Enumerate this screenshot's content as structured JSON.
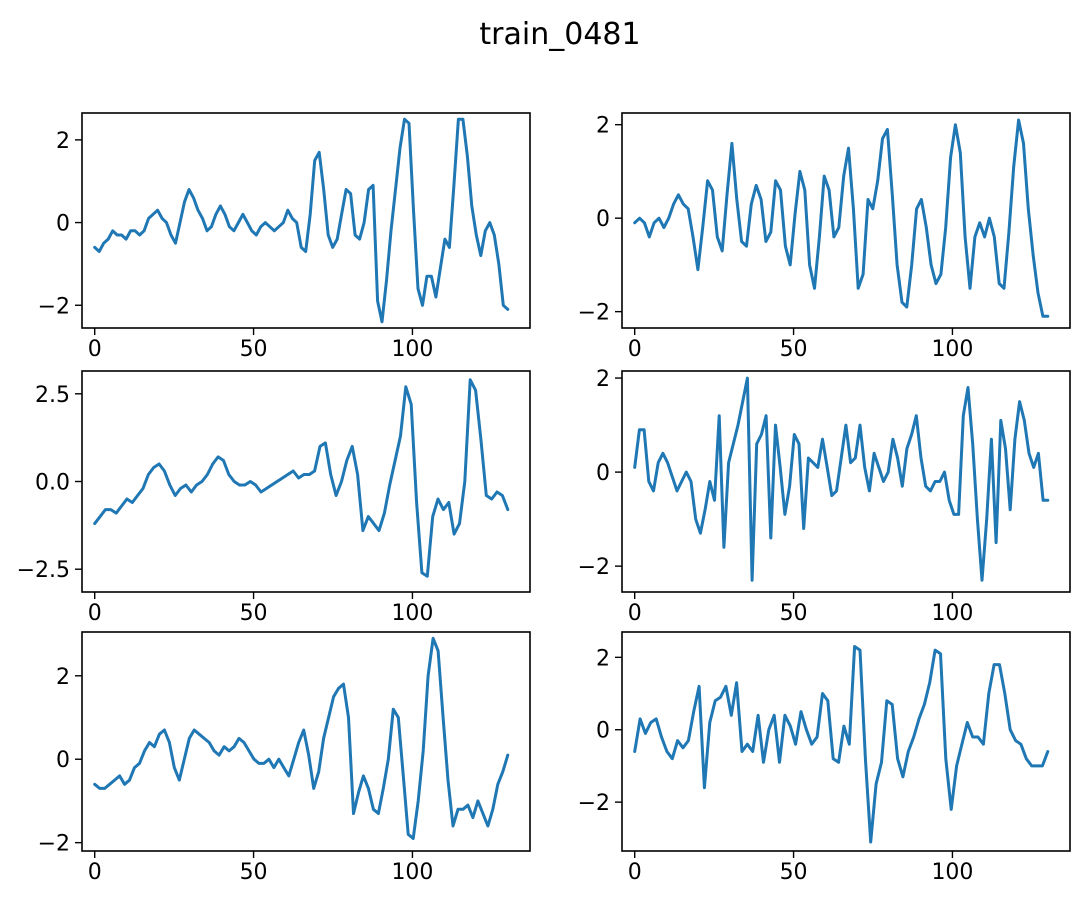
{
  "title": "train_0481",
  "colors": {
    "series": "#1f77b4"
  },
  "chart_data": [
    {
      "type": "line",
      "xlim": [
        -4,
        137
      ],
      "ylim": [
        -2.55,
        2.65
      ],
      "xticks": [
        0,
        50,
        100
      ],
      "xtick_labels": [
        "0",
        "50",
        "100"
      ],
      "yticks": [
        -2,
        0,
        2
      ],
      "ytick_labels": [
        "−2",
        "0",
        "2"
      ],
      "series": [
        {
          "values": [
            -0.6,
            -0.7,
            -0.5,
            -0.4,
            -0.2,
            -0.3,
            -0.3,
            -0.4,
            -0.2,
            -0.2,
            -0.3,
            -0.2,
            0.1,
            0.2,
            0.3,
            0.1,
            0.0,
            -0.3,
            -0.5,
            0.0,
            0.5,
            0.8,
            0.6,
            0.3,
            0.1,
            -0.2,
            -0.1,
            0.2,
            0.4,
            0.2,
            -0.1,
            -0.2,
            0.0,
            0.2,
            0.0,
            -0.2,
            -0.3,
            -0.1,
            0.0,
            -0.1,
            -0.2,
            -0.1,
            0.0,
            0.3,
            0.1,
            0.0,
            -0.6,
            -0.7,
            0.2,
            1.5,
            1.7,
            0.8,
            -0.3,
            -0.6,
            -0.4,
            0.2,
            0.8,
            0.7,
            -0.3,
            -0.4,
            0.0,
            0.8,
            0.9,
            -1.9,
            -2.4,
            -1.4,
            -0.2,
            0.8,
            1.8,
            2.5,
            2.4,
            0.3,
            -1.6,
            -2.0,
            -1.3,
            -1.3,
            -1.8,
            -1.1,
            -0.4,
            -0.6,
            0.9,
            2.5,
            2.5,
            1.6,
            0.4,
            -0.3,
            -0.8,
            -0.2,
            0.0,
            -0.3,
            -1.0,
            -2.0,
            -2.1
          ]
        }
      ]
    },
    {
      "type": "line",
      "xlim": [
        -4,
        137
      ],
      "ylim": [
        -2.35,
        2.25
      ],
      "xticks": [
        0,
        50,
        100
      ],
      "xtick_labels": [
        "0",
        "50",
        "100"
      ],
      "yticks": [
        -2,
        0,
        2
      ],
      "ytick_labels": [
        "−2",
        "0",
        "2"
      ],
      "series": [
        {
          "values": [
            -0.1,
            0.0,
            -0.1,
            -0.4,
            -0.1,
            0.0,
            -0.2,
            0.0,
            0.3,
            0.5,
            0.3,
            0.2,
            -0.4,
            -1.1,
            -0.2,
            0.8,
            0.6,
            -0.4,
            -0.7,
            0.5,
            1.6,
            0.4,
            -0.5,
            -0.6,
            0.3,
            0.7,
            0.4,
            -0.5,
            -0.3,
            0.8,
            0.6,
            -0.6,
            -1.0,
            0.1,
            1.0,
            0.6,
            -1.0,
            -1.5,
            -0.4,
            0.9,
            0.6,
            -0.4,
            -0.2,
            0.9,
            1.5,
            0.2,
            -1.5,
            -1.2,
            0.4,
            0.2,
            0.8,
            1.7,
            1.9,
            0.5,
            -1.0,
            -1.8,
            -1.9,
            -1.0,
            0.2,
            0.4,
            -0.2,
            -1.0,
            -1.4,
            -1.2,
            -0.2,
            1.3,
            2.0,
            1.4,
            -0.4,
            -1.5,
            -0.4,
            -0.1,
            -0.4,
            0.0,
            -0.4,
            -1.4,
            -1.5,
            -0.3,
            1.1,
            2.1,
            1.6,
            0.2,
            -0.8,
            -1.6,
            -2.1,
            -2.1
          ]
        }
      ]
    },
    {
      "type": "line",
      "xlim": [
        -4,
        137
      ],
      "ylim": [
        -3.15,
        3.15
      ],
      "xticks": [
        0,
        50,
        100
      ],
      "xtick_labels": [
        "0",
        "50",
        "100"
      ],
      "yticks": [
        -2.5,
        0,
        2.5
      ],
      "ytick_labels": [
        "−2.5",
        "0.0",
        "2.5"
      ],
      "series": [
        {
          "values": [
            -1.2,
            -1.0,
            -0.8,
            -0.8,
            -0.9,
            -0.7,
            -0.5,
            -0.6,
            -0.4,
            -0.2,
            0.2,
            0.4,
            0.5,
            0.3,
            -0.1,
            -0.4,
            -0.2,
            -0.1,
            -0.3,
            -0.1,
            0.0,
            0.2,
            0.5,
            0.7,
            0.6,
            0.2,
            0.0,
            -0.1,
            -0.1,
            0.0,
            -0.1,
            -0.3,
            -0.2,
            -0.1,
            0.0,
            0.1,
            0.2,
            0.3,
            0.1,
            0.2,
            0.2,
            0.3,
            1.0,
            1.1,
            0.2,
            -0.4,
            0.0,
            0.6,
            1.0,
            0.2,
            -1.4,
            -1.0,
            -1.2,
            -1.4,
            -0.9,
            -0.1,
            0.6,
            1.3,
            2.7,
            2.2,
            -0.6,
            -2.6,
            -2.7,
            -1.0,
            -0.5,
            -0.8,
            -0.6,
            -1.5,
            -1.2,
            0.0,
            2.9,
            2.6,
            1.2,
            -0.4,
            -0.5,
            -0.3,
            -0.4,
            -0.8
          ]
        }
      ]
    },
    {
      "type": "line",
      "xlim": [
        -4,
        137
      ],
      "ylim": [
        -2.55,
        2.15
      ],
      "xticks": [
        0,
        50,
        100
      ],
      "xtick_labels": [
        "0",
        "50",
        "100"
      ],
      "yticks": [
        -2,
        0,
        2
      ],
      "ytick_labels": [
        "−2",
        "0",
        "2"
      ],
      "series": [
        {
          "values": [
            0.1,
            0.9,
            0.9,
            -0.2,
            -0.4,
            0.2,
            0.4,
            0.2,
            -0.1,
            -0.4,
            -0.2,
            0.0,
            -0.2,
            -1.0,
            -1.3,
            -0.8,
            -0.2,
            -0.6,
            1.2,
            -1.6,
            0.2,
            0.6,
            1.0,
            1.5,
            2.0,
            -2.3,
            0.6,
            0.8,
            1.2,
            -1.4,
            1.0,
            0.1,
            -0.9,
            -0.3,
            0.8,
            0.6,
            -1.2,
            0.3,
            0.2,
            0.1,
            0.7,
            0.1,
            -0.5,
            -0.4,
            0.3,
            1.0,
            0.2,
            0.3,
            1.0,
            0.1,
            -0.4,
            0.4,
            0.1,
            -0.2,
            0.0,
            0.7,
            0.3,
            -0.3,
            0.5,
            0.8,
            1.2,
            0.3,
            -0.3,
            -0.4,
            -0.2,
            -0.2,
            0.0,
            -0.6,
            -0.9,
            -0.9,
            1.2,
            1.8,
            0.6,
            -1.0,
            -2.3,
            -1.0,
            0.7,
            -1.5,
            1.1,
            0.5,
            -0.8,
            0.7,
            1.5,
            1.1,
            0.4,
            0.1,
            0.4,
            -0.6,
            -0.6
          ]
        }
      ]
    },
    {
      "type": "line",
      "xlim": [
        -4,
        137
      ],
      "ylim": [
        -2.2,
        3.05
      ],
      "xticks": [
        0,
        50,
        100
      ],
      "xtick_labels": [
        "0",
        "50",
        "100"
      ],
      "yticks": [
        -2,
        0,
        2
      ],
      "ytick_labels": [
        "−2",
        "0",
        "2"
      ],
      "series": [
        {
          "values": [
            -0.6,
            -0.7,
            -0.7,
            -0.6,
            -0.5,
            -0.4,
            -0.6,
            -0.5,
            -0.2,
            -0.1,
            0.2,
            0.4,
            0.3,
            0.6,
            0.7,
            0.4,
            -0.2,
            -0.5,
            0.0,
            0.5,
            0.7,
            0.6,
            0.5,
            0.4,
            0.2,
            0.1,
            0.3,
            0.2,
            0.3,
            0.5,
            0.4,
            0.2,
            0.0,
            -0.1,
            -0.1,
            0.0,
            -0.2,
            0.0,
            -0.2,
            -0.4,
            0.0,
            0.4,
            0.7,
            0.1,
            -0.7,
            -0.3,
            0.5,
            1.0,
            1.5,
            1.7,
            1.8,
            1.0,
            -1.3,
            -0.8,
            -0.4,
            -0.7,
            -1.2,
            -1.3,
            -0.7,
            0.0,
            1.2,
            1.0,
            -0.4,
            -1.8,
            -1.9,
            -1.0,
            0.2,
            2.0,
            2.9,
            2.6,
            1.0,
            -0.5,
            -1.6,
            -1.2,
            -1.2,
            -1.1,
            -1.4,
            -1.0,
            -1.3,
            -1.6,
            -1.2,
            -0.6,
            -0.3,
            0.1
          ]
        }
      ]
    },
    {
      "type": "line",
      "xlim": [
        -4,
        137
      ],
      "ylim": [
        -3.35,
        2.7
      ],
      "xticks": [
        0,
        50,
        100
      ],
      "xtick_labels": [
        "0",
        "50",
        "100"
      ],
      "yticks": [
        -2,
        0,
        2
      ],
      "ytick_labels": [
        "−2",
        "0",
        "2"
      ],
      "series": [
        {
          "values": [
            -0.6,
            0.3,
            -0.1,
            0.2,
            0.3,
            -0.2,
            -0.6,
            -0.8,
            -0.3,
            -0.5,
            -0.3,
            0.5,
            1.2,
            -1.6,
            0.2,
            0.8,
            0.9,
            1.2,
            0.4,
            1.3,
            -0.6,
            -0.4,
            -0.6,
            0.4,
            -0.9,
            0.0,
            0.4,
            -0.9,
            0.4,
            0.1,
            -0.4,
            0.5,
            0.0,
            -0.4,
            -0.2,
            1.0,
            0.8,
            -0.8,
            -0.9,
            0.1,
            -0.4,
            2.3,
            2.2,
            -0.8,
            -3.1,
            -1.5,
            -0.9,
            0.8,
            0.7,
            -0.8,
            -1.3,
            -0.6,
            -0.2,
            0.3,
            0.7,
            1.3,
            2.2,
            2.1,
            -0.8,
            -2.2,
            -1.0,
            -0.4,
            0.2,
            -0.2,
            -0.2,
            -0.4,
            1.0,
            1.8,
            1.8,
            1.0,
            0.0,
            -0.3,
            -0.4,
            -0.8,
            -1.0,
            -1.0,
            -1.0,
            -0.6
          ]
        }
      ]
    }
  ]
}
